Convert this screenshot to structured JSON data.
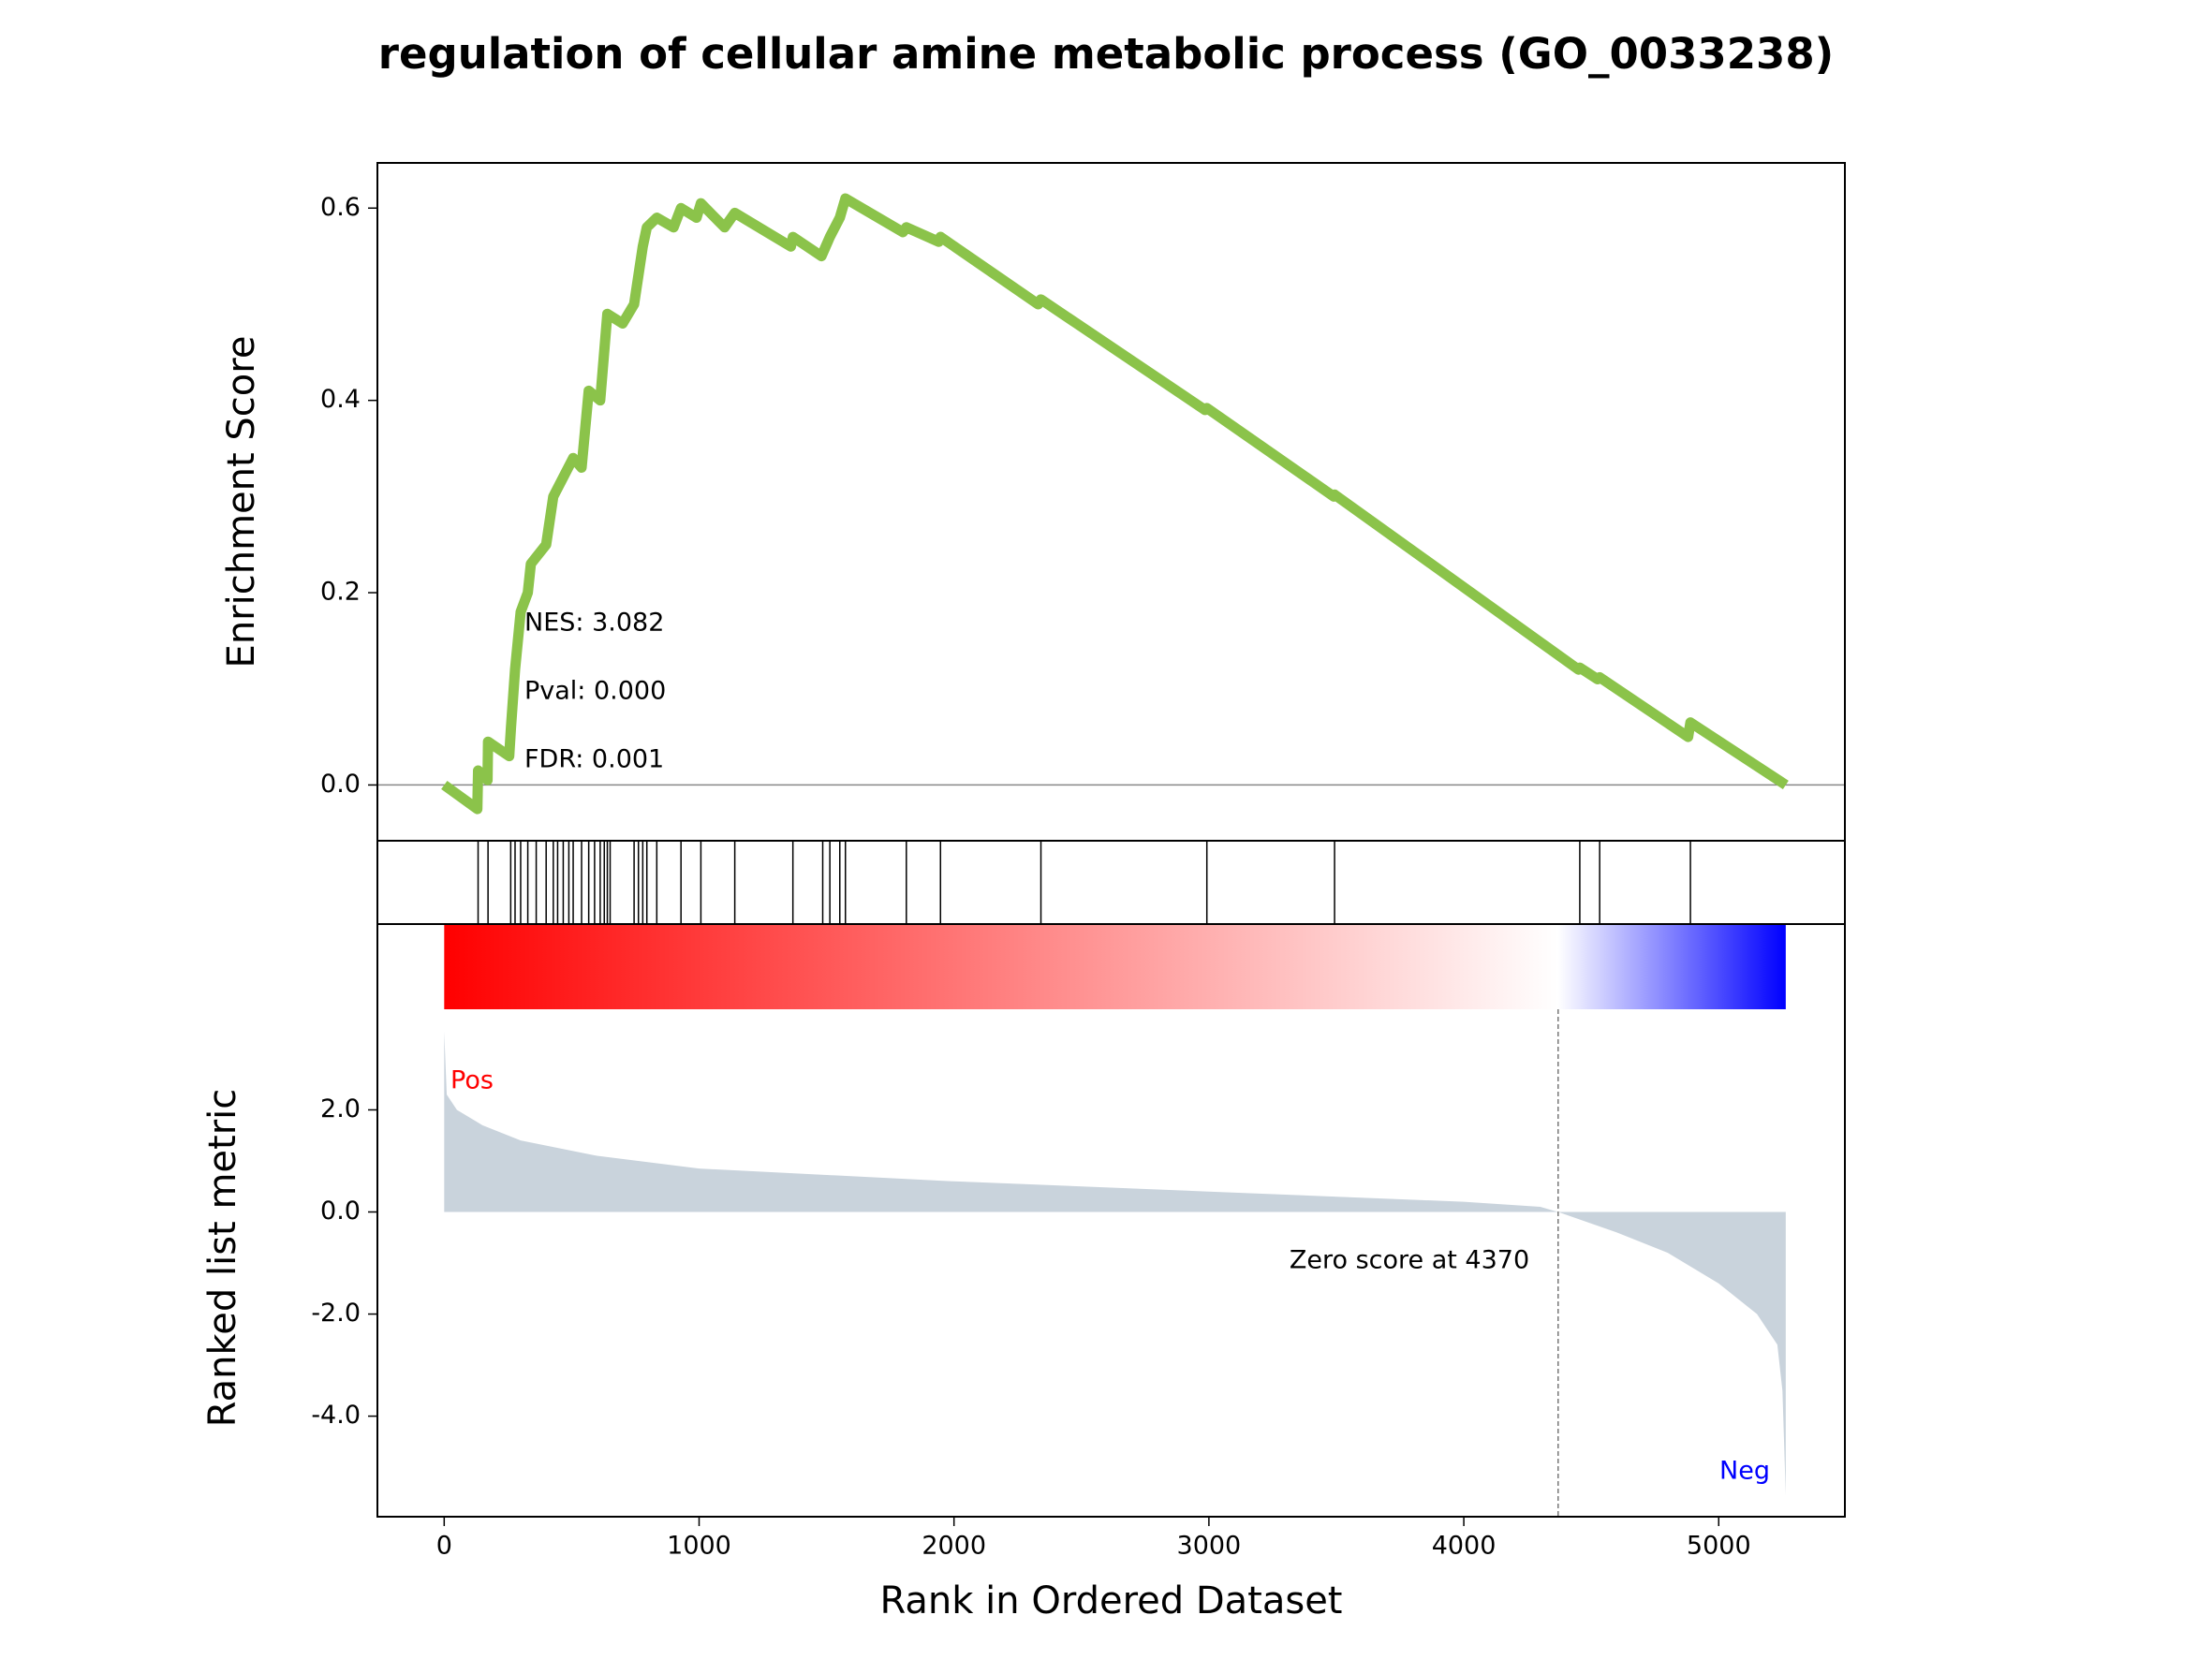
{
  "chart_data": [
    {
      "type": "line",
      "title": "regulation of cellular amine metabolic process (GO_0033238)",
      "ylabel": "Enrichment Score",
      "color": "#8bc34a",
      "x": [
        0,
        130,
        133,
        170,
        172,
        255,
        262,
        278,
        300,
        328,
        340,
        400,
        428,
        467,
        506,
        539,
        567,
        612,
        640,
        700,
        745,
        779,
        795,
        834,
        900,
        929,
        990,
        1007,
        1100,
        1140,
        1360,
        1368,
        1480,
        1513,
        1552,
        1574,
        1800,
        1813,
        1940,
        1947,
        2330,
        2341,
        2985,
        2992,
        3490,
        3493,
        4450,
        4455,
        4525,
        4533,
        4880,
        4889,
        5263
      ],
      "values": [
        0,
        -0.025,
        0.015,
        0.005,
        0.045,
        0.03,
        0.06,
        0.12,
        0.18,
        0.2,
        0.23,
        0.25,
        0.3,
        0.32,
        0.34,
        0.33,
        0.41,
        0.4,
        0.49,
        0.48,
        0.5,
        0.56,
        0.58,
        0.59,
        0.58,
        0.6,
        0.59,
        0.605,
        0.58,
        0.595,
        0.56,
        0.57,
        0.55,
        0.57,
        0.59,
        0.61,
        0.575,
        0.58,
        0.565,
        0.57,
        0.5,
        0.505,
        0.39,
        0.392,
        0.3,
        0.302,
        0.12,
        0.122,
        0.11,
        0.112,
        0.05,
        0.065,
        0
      ],
      "xlim": [
        -262,
        5495
      ],
      "ylim": [
        -0.058,
        0.647
      ],
      "yticks": [
        {
          "value": 0,
          "label": "0.0"
        },
        {
          "value": 0.2,
          "label": "0.2"
        },
        {
          "value": 0.4,
          "label": "0.4"
        },
        {
          "value": 0.6,
          "label": "0.6"
        }
      ],
      "annotations": [
        "NES: 3.082",
        "Pval: 0.000",
        "FDR: 0.001"
      ]
    },
    {
      "type": "hits",
      "x": [
        133,
        172,
        261,
        278,
        300,
        328,
        361,
        400,
        428,
        445,
        467,
        489,
        506,
        539,
        567,
        590,
        612,
        628,
        640,
        651,
        745,
        762,
        779,
        795,
        834,
        929,
        1007,
        1140,
        1368,
        1485,
        1513,
        1552,
        1574,
        1813,
        1947,
        2341,
        2992,
        3493,
        4455,
        4533,
        4889
      ],
      "xlim": [
        -262,
        5495
      ]
    },
    {
      "type": "area",
      "ylabel": "Ranked list metric",
      "xlabel": "Rank in Ordered Dataset",
      "color": "#c9d3dc",
      "x": [
        0,
        10,
        50,
        150,
        300,
        600,
        1000,
        2000,
        3000,
        4000,
        4300,
        4370,
        4600,
        4800,
        5000,
        5150,
        5230,
        5250,
        5263
      ],
      "values": [
        3.53,
        2.3,
        2.0,
        1.7,
        1.4,
        1.1,
        0.85,
        0.6,
        0.4,
        0.2,
        0.1,
        0,
        -0.4,
        -0.8,
        -1.4,
        -2.0,
        -2.6,
        -3.5,
        -5.55
      ],
      "xlim": [
        -262,
        5495
      ],
      "ylim": [
        -5.97,
        5.64
      ],
      "xticks": [
        0,
        1000,
        2000,
        3000,
        4000,
        5000
      ],
      "yticks": [
        {
          "value": 2,
          "label": "2.0"
        },
        {
          "value": 0,
          "label": "0.0"
        },
        {
          "value": -2,
          "label": "-2.0"
        },
        {
          "value": -4,
          "label": "-4.0"
        }
      ],
      "pos_label": "Pos",
      "neg_label": "Neg",
      "zero_rank": 4370,
      "zero_label": "Zero score at 4370"
    }
  ]
}
